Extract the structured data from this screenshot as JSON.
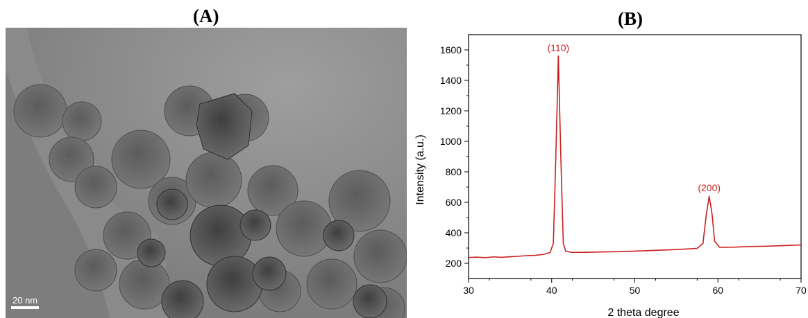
{
  "panel_a": {
    "label": "(A)",
    "scale_bar": "20 nm"
  },
  "panel_b": {
    "label": "(B)"
  },
  "chart_data": {
    "type": "line",
    "title": "",
    "xlabel": "2 theta degree",
    "ylabel": "Intensity (a.u.)",
    "xlim": [
      30,
      70
    ],
    "ylim": [
      100,
      1700
    ],
    "x_ticks": [
      30,
      40,
      50,
      60,
      70
    ],
    "y_ticks": [
      200,
      400,
      600,
      800,
      1000,
      1200,
      1400,
      1600
    ],
    "grid": false,
    "legend": "none",
    "series": [
      {
        "color": "#cc1f1f",
        "points": [
          [
            30,
            238
          ],
          [
            31,
            240
          ],
          [
            32,
            237
          ],
          [
            33,
            242
          ],
          [
            34,
            239
          ],
          [
            35,
            243
          ],
          [
            36,
            246
          ],
          [
            37,
            250
          ],
          [
            38,
            252
          ],
          [
            39,
            258
          ],
          [
            39.8,
            270
          ],
          [
            40.2,
            330
          ],
          [
            40.5,
            900
          ],
          [
            40.8,
            1560
          ],
          [
            41.1,
            900
          ],
          [
            41.4,
            330
          ],
          [
            41.7,
            278
          ],
          [
            42.5,
            271
          ],
          [
            44,
            272
          ],
          [
            46,
            274
          ],
          [
            48,
            276
          ],
          [
            50,
            280
          ],
          [
            52,
            284
          ],
          [
            54,
            288
          ],
          [
            56,
            293
          ],
          [
            57.5,
            298
          ],
          [
            58.2,
            330
          ],
          [
            58.6,
            520
          ],
          [
            58.95,
            640
          ],
          [
            59.3,
            520
          ],
          [
            59.6,
            345
          ],
          [
            60.2,
            305
          ],
          [
            62,
            306
          ],
          [
            64,
            310
          ],
          [
            66,
            312
          ],
          [
            68,
            316
          ],
          [
            70,
            320
          ]
        ]
      }
    ],
    "annotations": [
      {
        "text": "(110)",
        "x": 40.8,
        "y": 1560
      },
      {
        "text": "(200)",
        "x": 58.95,
        "y": 640
      }
    ]
  }
}
